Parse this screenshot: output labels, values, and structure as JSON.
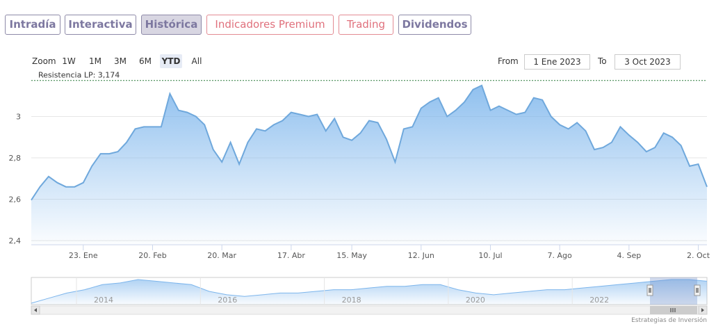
{
  "tabs": [
    "Intradía",
    "Interactiva",
    "Histórica",
    "Indicadores Premium",
    "Trading",
    "Dividendos"
  ],
  "range_selector": {
    "zoom_label": "Zoom",
    "buttons": [
      "1W",
      "1M",
      "3M",
      "6M",
      "YTD",
      "All"
    ],
    "active": "YTD",
    "from_label": "From",
    "from_value": "1 Ene 2023",
    "to_label": "To",
    "to_value": "3 Oct 2023"
  },
  "chart_data": {
    "type": "area",
    "color": "#6fa8dc",
    "categories": [
      null,
      null,
      null,
      null,
      null,
      null,
      "23. Ene",
      null,
      null,
      null,
      null,
      null,
      null,
      null,
      "20. Feb",
      null,
      null,
      null,
      null,
      null,
      null,
      null,
      "20. Mar",
      null,
      null,
      null,
      null,
      null,
      null,
      null,
      "17. Abr",
      null,
      null,
      null,
      null,
      null,
      null,
      "15. May",
      null,
      null,
      null,
      null,
      null,
      null,
      null,
      "12. Jun",
      null,
      null,
      null,
      null,
      null,
      null,
      null,
      "10. Jul",
      null,
      null,
      null,
      null,
      null,
      null,
      null,
      "7. Ago",
      null,
      null,
      null,
      null,
      null,
      null,
      null,
      "4. Sep",
      null,
      null,
      null,
      null,
      null,
      null,
      null,
      "2. Oct",
      null
    ],
    "values": [
      2.596,
      2.66,
      2.71,
      2.68,
      2.66,
      2.66,
      2.68,
      2.76,
      2.82,
      2.82,
      2.83,
      2.875,
      2.94,
      2.95,
      2.95,
      2.95,
      3.11,
      3.03,
      3.02,
      3.0,
      2.96,
      2.84,
      2.78,
      2.875,
      2.77,
      2.875,
      2.94,
      2.93,
      2.96,
      2.98,
      3.02,
      3.01,
      3.0,
      3.01,
      2.93,
      2.99,
      2.9,
      2.885,
      2.92,
      2.98,
      2.97,
      2.89,
      2.78,
      2.94,
      2.95,
      3.04,
      3.07,
      3.09,
      3.0,
      3.03,
      3.07,
      3.13,
      3.15,
      3.03,
      3.05,
      3.03,
      3.01,
      3.02,
      3.09,
      3.08,
      3.0,
      2.96,
      2.94,
      2.97,
      2.93,
      2.84,
      2.85,
      2.875,
      2.95,
      2.91,
      2.875,
      2.83,
      2.85,
      2.92,
      2.9,
      2.86,
      2.76,
      2.77,
      2.66
    ],
    "ylim": [
      2.38,
      3.2
    ],
    "yticks": [
      {
        "value": 2.4,
        "label": "2,4"
      },
      {
        "value": 2.6,
        "label": "2,6"
      },
      {
        "value": 2.8,
        "label": "2,8"
      },
      3
    ],
    "grid": true,
    "resistance": {
      "label": "Resistencia LP: 3,174",
      "value": 3.174
    },
    "navigator": {
      "labels": [
        "2014",
        "2016",
        "2018",
        "2020",
        "2022"
      ],
      "values": [
        2.2,
        2.35,
        2.5,
        2.6,
        2.75,
        2.8,
        2.9,
        2.85,
        2.8,
        2.75,
        2.55,
        2.45,
        2.4,
        2.45,
        2.5,
        2.5,
        2.55,
        2.6,
        2.6,
        2.65,
        2.7,
        2.7,
        2.75,
        2.75,
        2.6,
        2.5,
        2.45,
        2.5,
        2.55,
        2.6,
        2.6,
        2.65,
        2.7,
        2.75,
        2.8,
        2.85,
        2.9,
        2.9,
        2.85
      ]
    }
  },
  "credit": "Estrategias de Inversión"
}
